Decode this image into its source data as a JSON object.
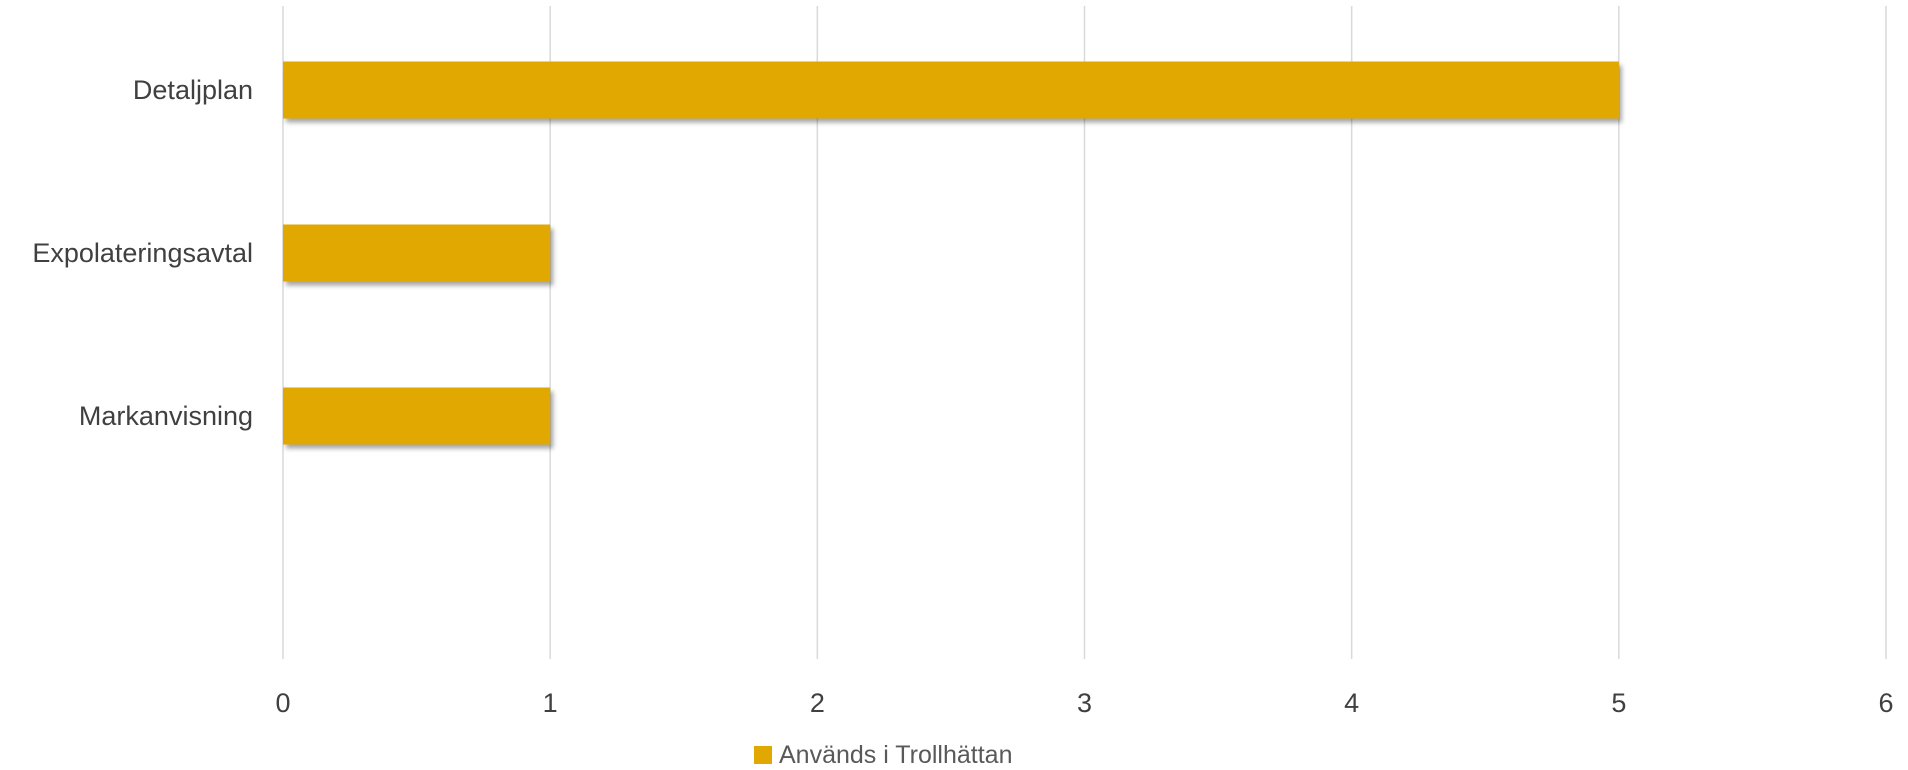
{
  "chart_data": {
    "type": "bar",
    "orientation": "horizontal",
    "categories": [
      "Detaljplan",
      "Expolateringsavtal",
      "Markanvisning"
    ],
    "series": [
      {
        "name": "Används i Trollhättan",
        "values": [
          5,
          1,
          1
        ],
        "color": "#E0A800"
      }
    ],
    "xlim": [
      0,
      6
    ],
    "xticks": [
      "0",
      "1",
      "2",
      "3",
      "4",
      "5",
      "6"
    ],
    "grid": "vertical",
    "legend": "bottom-center",
    "title": "",
    "xlabel": "",
    "ylabel": ""
  }
}
